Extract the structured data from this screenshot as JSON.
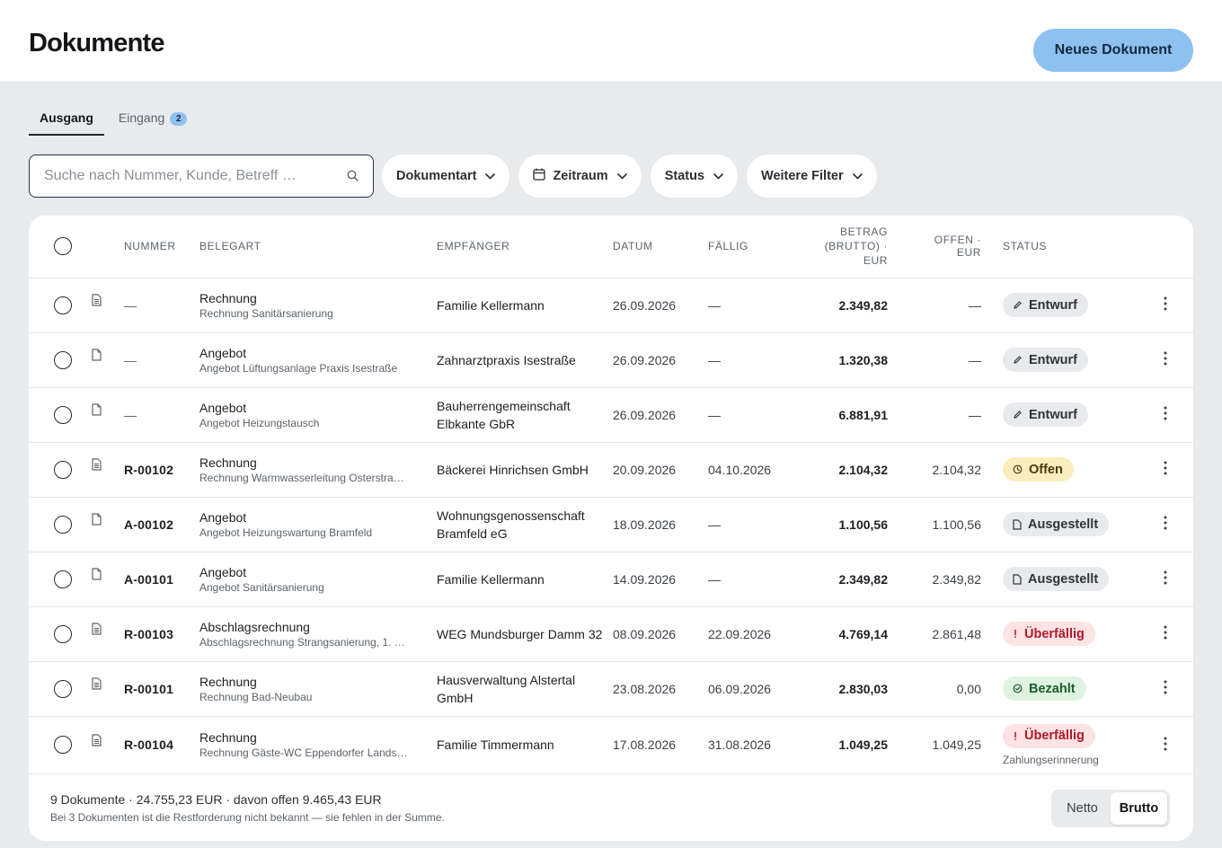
{
  "header": {
    "title": "Dokumente",
    "new_button": "Neues Dokument"
  },
  "tabs": [
    {
      "label": "Ausgang",
      "active": true
    },
    {
      "label": "Eingang",
      "badge": "2",
      "active": false
    }
  ],
  "search": {
    "placeholder": "Suche nach Nummer, Kunde, Betreff …",
    "value": ""
  },
  "filters": {
    "doctype": "Dokumentart",
    "period": "Zeitraum",
    "status": "Status",
    "more": "Weitere Filter"
  },
  "table": {
    "headers": {
      "number": "NUMMER",
      "type": "BELEGART",
      "recipient": "EMPFÄNGER",
      "date": "DATUM",
      "due": "FÄLLIG",
      "amount": "BETRAG (BRUTTO) · EUR",
      "open": "OFFEN · EUR",
      "status": "STATUS"
    },
    "rows": [
      {
        "number": "—",
        "type": "Rechnung",
        "subject": "Rechnung Sanitärsanierung",
        "recipient": "Familie Kellermann",
        "date": "26.09.2026",
        "due": "—",
        "amount": "2.349,82",
        "open": "—",
        "status": "Entwurf",
        "status_kind": "draft",
        "icon": "invoice-doc-icon",
        "note": ""
      },
      {
        "number": "—",
        "type": "Angebot",
        "subject": "Angebot Lüftungsanlage Praxis Isestraße",
        "recipient": "Zahnarztpraxis Isestraße",
        "date": "26.09.2026",
        "due": "—",
        "amount": "1.320,38",
        "open": "—",
        "status": "Entwurf",
        "status_kind": "draft",
        "icon": "blank-doc-icon",
        "note": ""
      },
      {
        "number": "—",
        "type": "Angebot",
        "subject": "Angebot Heizungstausch",
        "recipient": "Bauherrengemeinschaft Elbkante GbR",
        "date": "26.09.2026",
        "due": "—",
        "amount": "6.881,91",
        "open": "—",
        "status": "Entwurf",
        "status_kind": "draft",
        "icon": "blank-doc-icon",
        "note": ""
      },
      {
        "number": "R-00102",
        "type": "Rechnung",
        "subject": "Rechnung Warmwasserleitung Osterstra…",
        "recipient": "Bäckerei Hinrichsen GmbH",
        "date": "20.09.2026",
        "due": "04.10.2026",
        "amount": "2.104,32",
        "open": "2.104,32",
        "status": "Offen",
        "status_kind": "open",
        "icon": "invoice-doc-icon",
        "note": ""
      },
      {
        "number": "A-00102",
        "type": "Angebot",
        "subject": "Angebot Heizungswartung Bramfeld",
        "recipient": "Wohnungsgenossenschaft Bramfeld eG",
        "date": "18.09.2026",
        "due": "—",
        "amount": "1.100,56",
        "open": "1.100,56",
        "status": "Ausgestellt",
        "status_kind": "issued",
        "icon": "blank-doc-icon",
        "note": ""
      },
      {
        "number": "A-00101",
        "type": "Angebot",
        "subject": "Angebot Sanitärsanierung",
        "recipient": "Familie Kellermann",
        "date": "14.09.2026",
        "due": "—",
        "amount": "2.349,82",
        "open": "2.349,82",
        "status": "Ausgestellt",
        "status_kind": "issued",
        "icon": "blank-doc-icon",
        "note": ""
      },
      {
        "number": "R-00103",
        "type": "Abschlagsrechnung",
        "subject": "Abschlagsrechnung Strangsanierung, 1. …",
        "recipient": "WEG Mundsburger Damm 32",
        "date": "08.09.2026",
        "due": "22.09.2026",
        "amount": "4.769,14",
        "open": "2.861,48",
        "status": "Überfällig",
        "status_kind": "overdue",
        "icon": "invoice-doc-icon",
        "note": ""
      },
      {
        "number": "R-00101",
        "type": "Rechnung",
        "subject": "Rechnung Bad-Neubau",
        "recipient": "Hausverwaltung Alstertal GmbH",
        "date": "23.08.2026",
        "due": "06.09.2026",
        "amount": "2.830,03",
        "open": "0,00",
        "status": "Bezahlt",
        "status_kind": "paid",
        "icon": "invoice-doc-icon",
        "note": ""
      },
      {
        "number": "R-00104",
        "type": "Rechnung",
        "subject": "Rechnung Gäste-WC Eppendorfer Lands…",
        "recipient": "Familie Timmermann",
        "date": "17.08.2026",
        "due": "31.08.2026",
        "amount": "1.049,25",
        "open": "1.049,25",
        "status": "Überfällig",
        "status_kind": "overdue",
        "icon": "invoice-doc-icon",
        "note": "Zahlungserinnerung"
      }
    ]
  },
  "footer": {
    "summary": "9 Dokumente · 24.755,23 EUR · davon offen 9.465,43 EUR",
    "note": "Bei 3 Dokumenten ist die Restforderung nicht bekannt — sie fehlen in der Summe.",
    "toggle": {
      "netto": "Netto",
      "brutto": "Brutto",
      "selected": "Brutto"
    }
  },
  "colors": {
    "accent": "#8ec1ef",
    "overdue": "#b0192a",
    "paid": "#1c5b2a",
    "open": "#fbeebc"
  }
}
